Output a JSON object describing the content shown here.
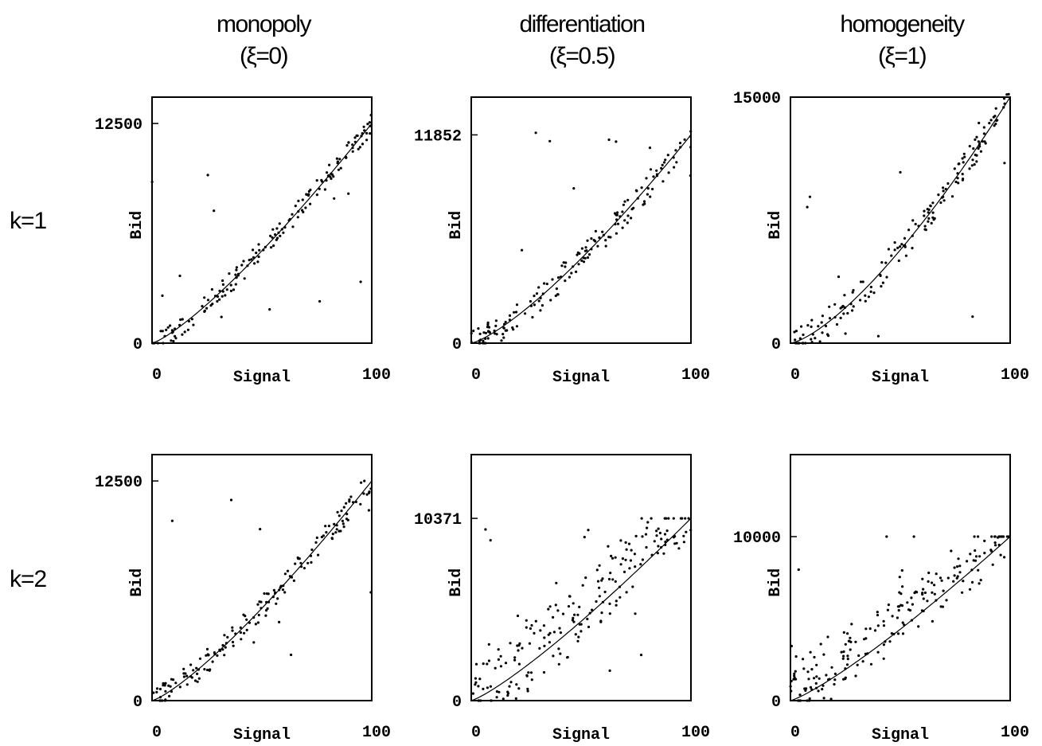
{
  "column_titles": [
    {
      "name": "monopoly",
      "param": "(ξ=0)"
    },
    {
      "name": "differentiation",
      "param": "(ξ=0.5)"
    },
    {
      "name": "homogeneity",
      "param": "(ξ=1)"
    }
  ],
  "row_labels": [
    "k=1",
    "k=2"
  ],
  "chart_data": [
    {
      "type": "scatter",
      "row": "k=1",
      "column": "monopoly",
      "xlabel": "Signal",
      "ylabel": "Bid",
      "xlim": [
        0,
        100
      ],
      "ylim": [
        0,
        14000
      ],
      "xticks": [
        "0",
        "100"
      ],
      "yticks": [
        "0",
        "12500"
      ],
      "ytick_values": [
        0,
        12500
      ],
      "curve": {
        "kind": "power",
        "y_at_100": 12500,
        "exponent": 1.25
      },
      "scatter_seed": 11,
      "scatter_count": 170,
      "noise": 600,
      "outlier_rate": 0.06
    },
    {
      "type": "scatter",
      "row": "k=1",
      "column": "differentiation",
      "xlabel": "Signal",
      "ylabel": "Bid",
      "xlim": [
        0,
        100
      ],
      "ylim": [
        0,
        14000
      ],
      "xticks": [
        "0",
        "100"
      ],
      "yticks": [
        "0",
        "11852"
      ],
      "ytick_values": [
        0,
        11852
      ],
      "curve": {
        "kind": "power",
        "y_at_100": 11852,
        "exponent": 1.3
      },
      "scatter_seed": 23,
      "scatter_count": 170,
      "noise": 800,
      "outlier_rate": 0.05
    },
    {
      "type": "scatter",
      "row": "k=1",
      "column": "homogeneity",
      "xlabel": "Signal",
      "ylabel": "Bid",
      "xlim": [
        0,
        100
      ],
      "ylim": [
        0,
        15000
      ],
      "xticks": [
        "0",
        "100"
      ],
      "yticks": [
        "0",
        "15000"
      ],
      "ytick_values": [
        0,
        15000
      ],
      "curve": {
        "kind": "power",
        "y_at_100": 15000,
        "exponent": 1.4
      },
      "scatter_seed": 37,
      "scatter_count": 170,
      "noise": 900,
      "outlier_rate": 0.05
    },
    {
      "type": "scatter",
      "row": "k=2",
      "column": "monopoly",
      "xlabel": "Signal",
      "ylabel": "Bid",
      "xlim": [
        0,
        100
      ],
      "ylim": [
        0,
        14000
      ],
      "xticks": [
        "0",
        "100"
      ],
      "yticks": [
        "0",
        "12500"
      ],
      "ytick_values": [
        0,
        12500
      ],
      "curve": {
        "kind": "power",
        "y_at_100": 12500,
        "exponent": 1.25
      },
      "scatter_seed": 41,
      "scatter_count": 170,
      "noise": 700,
      "outlier_rate": 0.08,
      "cap": 12500
    },
    {
      "type": "scatter",
      "row": "k=2",
      "column": "differentiation",
      "xlabel": "Signal",
      "ylabel": "Bid",
      "xlim": [
        0,
        100
      ],
      "ylim": [
        0,
        14000
      ],
      "xticks": [
        "0",
        "100"
      ],
      "yticks": [
        "0",
        "10371"
      ],
      "ytick_values": [
        0,
        10371
      ],
      "curve": {
        "kind": "power",
        "y_at_100": 10371,
        "exponent": 1.2
      },
      "scatter_seed": 53,
      "scatter_count": 200,
      "noise": 1800,
      "outlier_rate": 0.05,
      "cap": 10371,
      "bias": 1200
    },
    {
      "type": "scatter",
      "row": "k=2",
      "column": "homogeneity",
      "xlabel": "Signal",
      "ylabel": "Bid",
      "xlim": [
        0,
        100
      ],
      "ylim": [
        0,
        15000
      ],
      "xticks": [
        "0",
        "100"
      ],
      "yticks": [
        "0",
        "10000"
      ],
      "ytick_values": [
        0,
        10000
      ],
      "curve": {
        "kind": "power",
        "y_at_100": 10000,
        "exponent": 1.2
      },
      "scatter_seed": 67,
      "scatter_count": 200,
      "noise": 1500,
      "outlier_rate": 0.05,
      "cap": 10000,
      "bias": 1400
    }
  ]
}
